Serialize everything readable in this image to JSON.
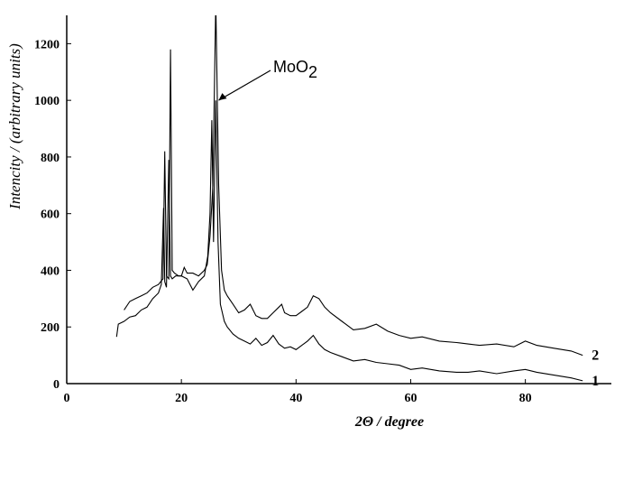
{
  "chart_data": {
    "type": "line",
    "x_label": "2Θ / degree",
    "y_label": "Intencity / (arbitrary units)",
    "annotation": {
      "text": "MoO",
      "subscript": "2",
      "x": 26.5,
      "y": 1000
    },
    "xlim": [
      0,
      95
    ],
    "ylim": [
      0,
      1300
    ],
    "xticks": [
      0,
      20,
      40,
      60,
      80
    ],
    "yticks": [
      0,
      200,
      400,
      600,
      800,
      1000,
      1200
    ],
    "series": [
      {
        "name": "1",
        "color": "#000000",
        "x": [
          8.7,
          9,
          10,
          11,
          12,
          13,
          14,
          15,
          16,
          16.5,
          16.9,
          17.1,
          17.4,
          17.8,
          18.1,
          18.4,
          19,
          20,
          21,
          22,
          23,
          24,
          24.6,
          25,
          25.3,
          25.6,
          26,
          26.4,
          26.8,
          27.5,
          28,
          29,
          30,
          31,
          32,
          33,
          34,
          35,
          36,
          37,
          38,
          39,
          40,
          41,
          42,
          43,
          44,
          45,
          46,
          48,
          50,
          52,
          54,
          56,
          58,
          60,
          62,
          65,
          68,
          70,
          72,
          75,
          78,
          80,
          82,
          85,
          88,
          90
        ],
        "values": [
          165,
          210,
          220,
          235,
          240,
          260,
          270,
          300,
          320,
          350,
          620,
          360,
          340,
          790,
          380,
          370,
          380,
          380,
          370,
          330,
          360,
          380,
          450,
          600,
          930,
          500,
          1000,
          500,
          280,
          220,
          200,
          175,
          160,
          150,
          140,
          160,
          135,
          145,
          170,
          140,
          125,
          130,
          120,
          135,
          150,
          170,
          140,
          120,
          110,
          95,
          80,
          85,
          75,
          70,
          65,
          50,
          55,
          45,
          40,
          40,
          45,
          35,
          45,
          50,
          40,
          30,
          20,
          10
        ]
      },
      {
        "name": "2",
        "color": "#000000",
        "x": [
          10,
          11,
          12,
          13,
          14,
          15,
          16,
          16.8,
          17.1,
          17.4,
          17.8,
          18.1,
          18.4,
          18.8,
          19.5,
          20,
          20.5,
          21,
          22,
          23,
          24,
          24.5,
          25,
          25.5,
          26,
          26.5,
          27,
          27.5,
          28,
          29,
          30,
          31,
          32,
          33,
          34,
          35,
          36,
          37,
          37.5,
          38,
          39,
          40,
          41,
          42,
          43,
          44,
          45,
          46,
          48,
          50,
          52,
          54,
          56,
          58,
          60,
          62,
          65,
          68,
          70,
          72,
          75,
          78,
          80,
          82,
          85,
          88,
          90
        ],
        "values": [
          260,
          290,
          300,
          310,
          320,
          340,
          350,
          370,
          820,
          380,
          370,
          1180,
          400,
          390,
          380,
          380,
          410,
          390,
          390,
          380,
          400,
          420,
          520,
          700,
          1350,
          700,
          400,
          330,
          310,
          280,
          250,
          260,
          280,
          240,
          230,
          230,
          250,
          270,
          280,
          250,
          240,
          240,
          255,
          270,
          310,
          300,
          270,
          250,
          220,
          190,
          195,
          210,
          185,
          170,
          160,
          165,
          150,
          145,
          140,
          135,
          140,
          130,
          150,
          135,
          125,
          115,
          100
        ]
      }
    ]
  }
}
